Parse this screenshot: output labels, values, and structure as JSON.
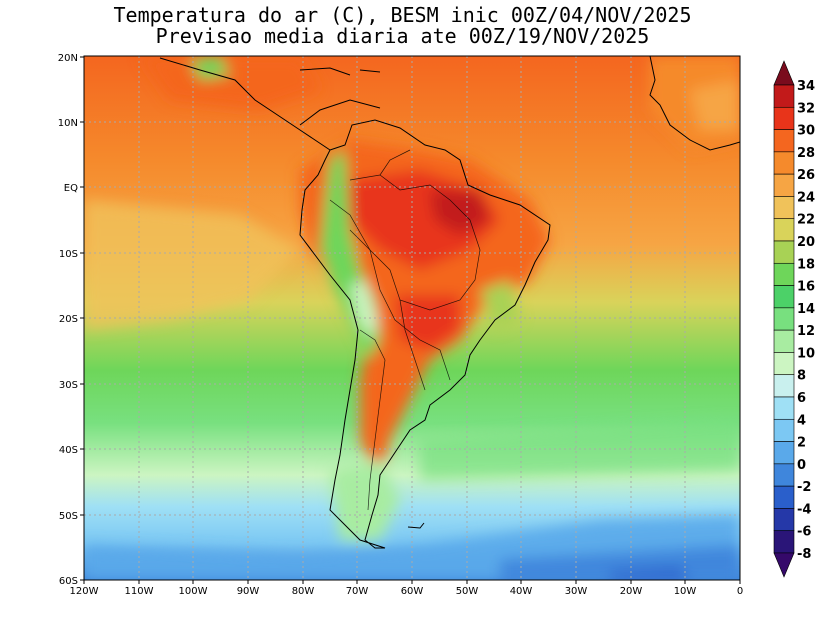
{
  "title": {
    "line1": "Temperatura do ar (C), BESM inic 00Z/04/NOV/2025",
    "line2": "Previsao media diaria ate 00Z/19/NOV/2025"
  },
  "axes": {
    "lat_labels": [
      "20N",
      "10N",
      "EQ",
      "10S",
      "20S",
      "30S",
      "40S",
      "50S",
      "60S"
    ],
    "lon_labels": [
      "120W",
      "110W",
      "100W",
      "90W",
      "80W",
      "70W",
      "60W",
      "50W",
      "40W",
      "30W",
      "20W",
      "10W",
      "0"
    ]
  },
  "colorbar": {
    "labels": [
      "34",
      "32",
      "30",
      "28",
      "26",
      "24",
      "22",
      "20",
      "18",
      "16",
      "14",
      "12",
      "10",
      "8",
      "6",
      "4",
      "2",
      "0",
      "-2",
      "-4",
      "-6",
      "-8"
    ],
    "colors": [
      "#7a0b1d",
      "#c21a1a",
      "#e8341a",
      "#f4661f",
      "#f58a2c",
      "#f6a544",
      "#f0c25a",
      "#d9d35a",
      "#a8d255",
      "#6ed65a",
      "#4cd168",
      "#78e07f",
      "#a8eca1",
      "#ccf5c2",
      "#c9f0ee",
      "#9fe0f5",
      "#7cc8f3",
      "#5aa9ea",
      "#3f86dc",
      "#2a5fcb",
      "#2538a8",
      "#2a1578",
      "#35096a"
    ]
  }
}
